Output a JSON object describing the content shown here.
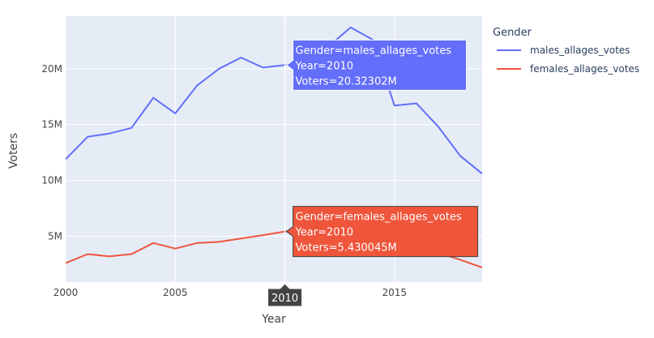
{
  "chart_data": {
    "type": "line",
    "xlabel": "Year",
    "ylabel": "Voters",
    "xlim": [
      2000,
      2019
    ],
    "ylim": [
      900000,
      24700000
    ],
    "x_ticks": [
      2000,
      2005,
      2010,
      2015
    ],
    "x_tick_labels": [
      "2000",
      "2005",
      "2010",
      "2015"
    ],
    "y_ticks": [
      5000000,
      10000000,
      15000000,
      20000000
    ],
    "y_tick_labels": [
      "5M",
      "10M",
      "15M",
      "20M"
    ],
    "grid": true,
    "legend": {
      "title": "Gender",
      "placement": "right"
    },
    "x": [
      2000,
      2001,
      2002,
      2003,
      2004,
      2005,
      2006,
      2007,
      2008,
      2009,
      2010,
      2011,
      2012,
      2013,
      2014,
      2015,
      2016,
      2017,
      2018,
      2019
    ],
    "series": [
      {
        "name": "males_allages_votes",
        "color": "#636efa",
        "values": [
          11900000,
          13900000,
          14200000,
          14700000,
          17400000,
          16000000,
          18500000,
          20000000,
          21000000,
          20100000,
          20323020,
          20600000,
          22000000,
          23700000,
          22600000,
          16700000,
          16900000,
          14800000,
          12200000,
          10600000
        ]
      },
      {
        "name": "females_allages_votes",
        "color": "#ef553b",
        "values": [
          2600000,
          3400000,
          3200000,
          3400000,
          4400000,
          3900000,
          4400000,
          4500000,
          4800000,
          5100000,
          5430045,
          5600000,
          5800000,
          5600000,
          5400000,
          4300000,
          4200000,
          3500000,
          2900000,
          2200000
        ]
      }
    ],
    "hover": {
      "x_label": "2010",
      "x_value": 2010,
      "males": {
        "lines": [
          "Gender=males_allages_votes",
          "Year=2010",
          "Voters=20.32302M"
        ],
        "y": 20323020
      },
      "females": {
        "lines": [
          "Gender=females_allages_votes",
          "Year=2010",
          "Voters=5.430045M"
        ],
        "y": 5430045
      }
    }
  }
}
